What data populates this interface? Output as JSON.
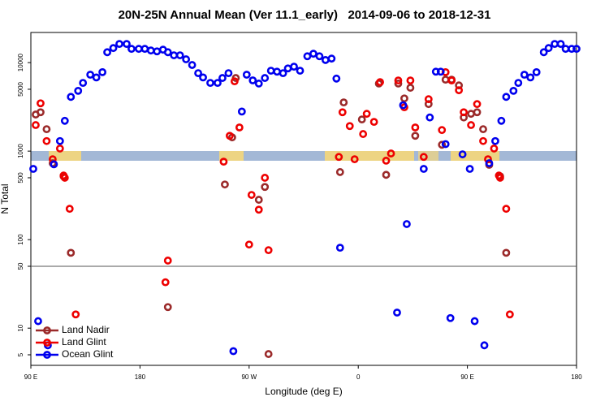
{
  "chart_data": {
    "type": "scatter",
    "title": "20N-25N Annual Mean (Ver 11.1_early)   2014-09-06 to 2018-12-31",
    "xlabel": "Longitude (deg E)",
    "ylabel": "N Total",
    "xlim": [
      -270,
      180
    ],
    "xticks": [
      {
        "value": -270,
        "label": "90 E"
      },
      {
        "value": -180,
        "label": "180"
      },
      {
        "value": -90,
        "label": "90 W"
      },
      0,
      {
        "value": 90,
        "label": "90 E"
      },
      180
    ],
    "ylim": [
      3.8,
      21900
    ],
    "ylog": true,
    "yticks": [
      5,
      10,
      50,
      100,
      500,
      1000,
      5000,
      10000
    ],
    "hline": 50,
    "legend": "bottom-left",
    "series": [
      {
        "name": "Land Nadir",
        "color": "#9b2a2a",
        "x": [
          -266,
          -262,
          -257,
          -252,
          -243,
          -237,
          -157,
          -110,
          -104,
          -101,
          -82,
          -77,
          -74,
          -15,
          -12,
          3,
          17,
          23,
          33,
          38,
          43,
          47,
          58,
          69,
          72,
          77,
          83,
          87,
          93,
          98,
          103,
          108,
          117,
          122
        ],
        "y": [
          2590,
          2750,
          1770,
          730,
          520,
          71,
          17.3,
          420,
          1430,
          6700,
          282,
          394,
          5.1,
          580,
          3550,
          2280,
          5800,
          540,
          5800,
          3940,
          5200,
          1490,
          3400,
          1180,
          6420,
          6420,
          5530,
          2400,
          2640,
          2750,
          1770,
          700,
          520,
          71
        ]
      },
      {
        "name": "Land Glint",
        "color": "#ee0000",
        "x": [
          -266,
          -262,
          -257,
          -252,
          -246,
          -243,
          -242,
          -238,
          -233,
          -159,
          -157,
          -111,
          -106,
          -102,
          -98,
          -90,
          -88,
          -82,
          -77,
          -74,
          -16,
          -13,
          -7,
          -3,
          4,
          7,
          13,
          18,
          23,
          27,
          33,
          38,
          43,
          47,
          54,
          58,
          69,
          72,
          77,
          83,
          87,
          93,
          98,
          103,
          107,
          112,
          116,
          117,
          122,
          125
        ],
        "y": [
          1970,
          3470,
          1300,
          810,
          1070,
          530,
          500,
          223,
          14.3,
          33,
          58,
          760,
          1490,
          6150,
          1850,
          88,
          320,
          218,
          500,
          76,
          860,
          2750,
          1920,
          810,
          1560,
          2640,
          2140,
          6020,
          780,
          940,
          6280,
          3130,
          6280,
          1850,
          860,
          3860,
          1730,
          7800,
          6280,
          4870,
          2750,
          1970,
          3400,
          1300,
          810,
          1070,
          530,
          500,
          223,
          14.3
        ]
      },
      {
        "name": "Ocean Glint",
        "color": "#0000ee",
        "x": [
          -268,
          -264,
          -256,
          -251,
          -246,
          -242,
          -237,
          -231,
          -227,
          -221,
          -216,
          -211,
          -207,
          -202,
          -197,
          -191,
          -187,
          -181,
          -176,
          -171,
          -166,
          -161,
          -157,
          -152,
          -147,
          -142,
          -137,
          -132,
          -128,
          -122,
          -116,
          -112,
          -107,
          -103,
          -96,
          -92,
          -87,
          -82,
          -77,
          -72,
          -67,
          -62,
          -58,
          -53,
          -48,
          -42,
          -37,
          -32,
          -27,
          -22,
          -18,
          -15,
          32,
          37,
          40,
          54,
          59,
          64,
          68,
          72,
          76,
          86,
          92,
          96,
          104,
          108,
          113,
          118,
          122,
          128,
          132,
          137,
          142,
          147,
          153,
          157,
          162,
          167,
          171,
          176,
          180
        ],
        "y": [
          630,
          12,
          6.4,
          710,
          1300,
          2200,
          4100,
          4800,
          5900,
          7300,
          6800,
          7800,
          13100,
          14600,
          16250,
          16250,
          14300,
          14300,
          14300,
          13700,
          13400,
          14000,
          13100,
          12100,
          12100,
          10900,
          9400,
          7600,
          6800,
          5900,
          5900,
          6700,
          7600,
          5.5,
          2800,
          7300,
          6300,
          5800,
          6700,
          8100,
          7900,
          7600,
          8600,
          9000,
          8100,
          11800,
          12600,
          11800,
          10700,
          11100,
          6600,
          81,
          15,
          3300,
          150,
          630,
          2400,
          7900,
          7900,
          1200,
          13,
          920,
          630,
          12,
          6.4,
          730,
          1300,
          2200,
          4100,
          4800,
          5900,
          7300,
          6800,
          7800,
          13100,
          14600,
          16250,
          16250,
          14300,
          14300,
          14300
        ]
      }
    ]
  }
}
